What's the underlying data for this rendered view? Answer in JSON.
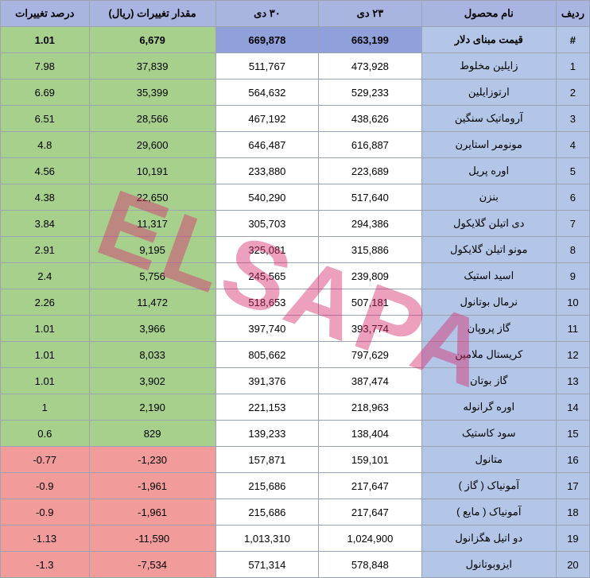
{
  "watermark": "ELSAPA",
  "colors": {
    "header_bg": "#a9b4e0",
    "base_alt_bg": "#b3c6e7",
    "highlight_bg": "#8fa0db",
    "pos_bg": "#a8d08d",
    "neg_bg": "#f29b9b",
    "border": "#9aa3af"
  },
  "columns": {
    "row": "ردیف",
    "name": "نام محصول",
    "d23": "۲۳ دی",
    "d30": "۳۰ دی",
    "amount": "مقدار تغییرات (ریال)",
    "pct": "درصد تغییرات"
  },
  "rows": [
    {
      "id": "#",
      "name": "قیمت مبنای دلار",
      "d23": "663,199",
      "d30": "669,878",
      "amount": "6,679",
      "pct": "1.01",
      "d_bg": "#8fa0db",
      "delta_bg": "#a8d08d",
      "bold": true
    },
    {
      "id": "1",
      "name": "زایلین مخلوط",
      "d23": "473,928",
      "d30": "511,767",
      "amount": "37,839",
      "pct": "7.98",
      "d_bg": "#ffffff",
      "delta_bg": "#a8d08d",
      "bold": false
    },
    {
      "id": "2",
      "name": "ارتوزایلین",
      "d23": "529,233",
      "d30": "564,632",
      "amount": "35,399",
      "pct": "6.69",
      "d_bg": "#ffffff",
      "delta_bg": "#a8d08d",
      "bold": false
    },
    {
      "id": "3",
      "name": "آروماتیک سنگین",
      "d23": "438,626",
      "d30": "467,192",
      "amount": "28,566",
      "pct": "6.51",
      "d_bg": "#ffffff",
      "delta_bg": "#a8d08d",
      "bold": false
    },
    {
      "id": "4",
      "name": "مونومر استایرن",
      "d23": "616,887",
      "d30": "646,487",
      "amount": "29,600",
      "pct": "4.8",
      "d_bg": "#ffffff",
      "delta_bg": "#a8d08d",
      "bold": false
    },
    {
      "id": "5",
      "name": "اوره پریل",
      "d23": "223,689",
      "d30": "233,880",
      "amount": "10,191",
      "pct": "4.56",
      "d_bg": "#ffffff",
      "delta_bg": "#a8d08d",
      "bold": false
    },
    {
      "id": "6",
      "name": "بنزن",
      "d23": "517,640",
      "d30": "540,290",
      "amount": "22,650",
      "pct": "4.38",
      "d_bg": "#ffffff",
      "delta_bg": "#a8d08d",
      "bold": false
    },
    {
      "id": "7",
      "name": "دی اتیلن گلایکول",
      "d23": "294,386",
      "d30": "305,703",
      "amount": "11,317",
      "pct": "3.84",
      "d_bg": "#ffffff",
      "delta_bg": "#a8d08d",
      "bold": false
    },
    {
      "id": "8",
      "name": "مونو اتیلن گلایکول",
      "d23": "315,886",
      "d30": "325,081",
      "amount": "9,195",
      "pct": "2.91",
      "d_bg": "#ffffff",
      "delta_bg": "#a8d08d",
      "bold": false
    },
    {
      "id": "9",
      "name": "اسید استیک",
      "d23": "239,809",
      "d30": "245,565",
      "amount": "5,756",
      "pct": "2.4",
      "d_bg": "#ffffff",
      "delta_bg": "#a8d08d",
      "bold": false
    },
    {
      "id": "10",
      "name": "نرمال بوتانول",
      "d23": "507,181",
      "d30": "518,653",
      "amount": "11,472",
      "pct": "2.26",
      "d_bg": "#ffffff",
      "delta_bg": "#a8d08d",
      "bold": false
    },
    {
      "id": "11",
      "name": "گاز پروپان",
      "d23": "393,774",
      "d30": "397,740",
      "amount": "3,966",
      "pct": "1.01",
      "d_bg": "#ffffff",
      "delta_bg": "#a8d08d",
      "bold": false
    },
    {
      "id": "12",
      "name": "کریستال ملامین",
      "d23": "797,629",
      "d30": "805,662",
      "amount": "8,033",
      "pct": "1.01",
      "d_bg": "#ffffff",
      "delta_bg": "#a8d08d",
      "bold": false
    },
    {
      "id": "13",
      "name": "گاز بوتان",
      "d23": "387,474",
      "d30": "391,376",
      "amount": "3,902",
      "pct": "1.01",
      "d_bg": "#ffffff",
      "delta_bg": "#a8d08d",
      "bold": false
    },
    {
      "id": "14",
      "name": "اوره گرانوله",
      "d23": "218,963",
      "d30": "221,153",
      "amount": "2,190",
      "pct": "1",
      "d_bg": "#ffffff",
      "delta_bg": "#a8d08d",
      "bold": false
    },
    {
      "id": "15",
      "name": "سود کاستیک",
      "d23": "138,404",
      "d30": "139,233",
      "amount": "829",
      "pct": "0.6",
      "d_bg": "#ffffff",
      "delta_bg": "#a8d08d",
      "bold": false
    },
    {
      "id": "16",
      "name": "متانول",
      "d23": "159,101",
      "d30": "157,871",
      "amount": "-1,230",
      "pct": "-0.77",
      "d_bg": "#ffffff",
      "delta_bg": "#f29b9b",
      "bold": false
    },
    {
      "id": "17",
      "name": "آمونیاک ( گاز )",
      "d23": "217,647",
      "d30": "215,686",
      "amount": "-1,961",
      "pct": "-0.9",
      "d_bg": "#ffffff",
      "delta_bg": "#f29b9b",
      "bold": false
    },
    {
      "id": "18",
      "name": "آمونیاک ( مایع )",
      "d23": "217,647",
      "d30": "215,686",
      "amount": "-1,961",
      "pct": "-0.9",
      "d_bg": "#ffffff",
      "delta_bg": "#f29b9b",
      "bold": false
    },
    {
      "id": "19",
      "name": "دو اتیل هگزانول",
      "d23": "1,024,900",
      "d30": "1,013,310",
      "amount": "-11,590",
      "pct": "-1.13",
      "d_bg": "#ffffff",
      "delta_bg": "#f29b9b",
      "bold": false
    },
    {
      "id": "20",
      "name": "ایزوبوتانول",
      "d23": "578,848",
      "d30": "571,314",
      "amount": "-7,534",
      "pct": "-1.3",
      "d_bg": "#ffffff",
      "delta_bg": "#f29b9b",
      "bold": false
    }
  ]
}
